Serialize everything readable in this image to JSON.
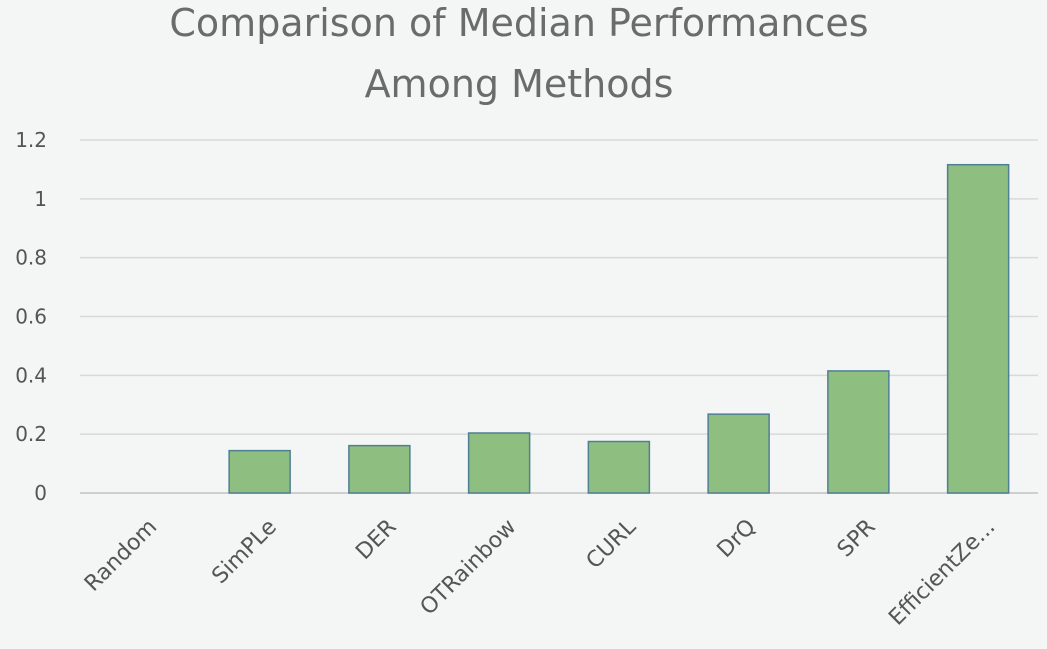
{
  "chart_data": {
    "type": "bar",
    "title": "Comparison of Median Performances Among Methods",
    "title_lines": [
      "Comparison of Median Performances",
      "Among Methods"
    ],
    "xlabel": "",
    "ylabel": "",
    "categories": [
      "Random",
      "SimPLe",
      "DER",
      "OTRainbow",
      "CURL",
      "DrQ",
      "SPR",
      "EfficientZe..."
    ],
    "values": [
      0,
      0.144,
      0.161,
      0.204,
      0.175,
      0.268,
      0.415,
      1.116
    ],
    "ylim": [
      0,
      1.2
    ],
    "yticks": [
      0,
      0.2,
      0.4,
      0.6,
      0.8,
      1,
      1.2
    ],
    "ytick_labels": [
      "0",
      "0.2",
      "0.4",
      "0.6",
      "0.8",
      "1",
      "1.2"
    ],
    "grid": true,
    "legend": "none",
    "colors": {
      "bar_fill": "#8fbf80",
      "bar_stroke": "#4f7f93",
      "background": "#f3f6f4",
      "grid": "#d9d9d9"
    }
  }
}
